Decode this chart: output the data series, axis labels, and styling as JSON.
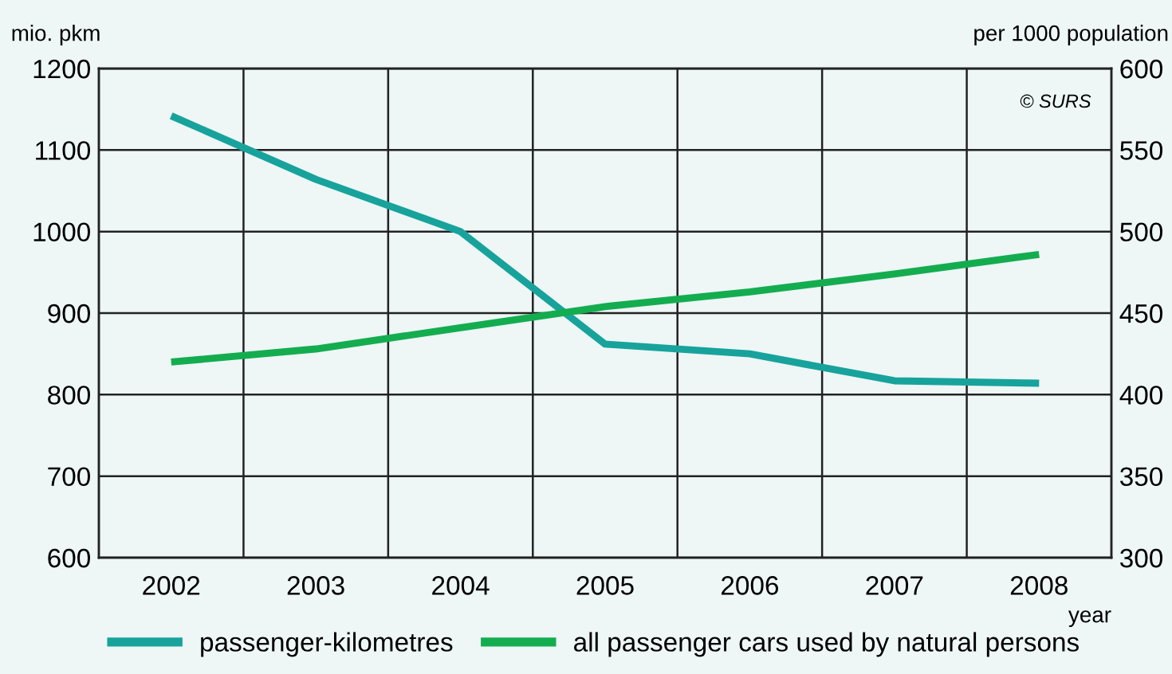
{
  "chart_data": {
    "type": "line",
    "categories": [
      "2002",
      "2003",
      "2004",
      "2005",
      "2006",
      "2007",
      "2008"
    ],
    "ylabel": "mio. pkm",
    "y2label": "per 1000 population",
    "xlabel": "year",
    "annotations": [
      "© SURS"
    ],
    "series": [
      {
        "name": "passenger-kilometres",
        "color": "#17a39c",
        "values": [
          1142,
          1064,
          1000,
          862,
          850,
          817,
          814
        ]
      },
      {
        "name": "all passenger cars used by natural persons",
        "color": "#13ad4f",
        "axis": "y2",
        "values": [
          420,
          428,
          441,
          454,
          463,
          474,
          486
        ]
      }
    ],
    "ylim": [
      600,
      1200
    ],
    "yticks": [
      600,
      700,
      800,
      900,
      1000,
      1100,
      1200
    ],
    "y2lim": [
      300,
      600
    ],
    "y2ticks": [
      300,
      350,
      400,
      450,
      500,
      550,
      600
    ],
    "grid": true,
    "legend": "bottom",
    "marker": "none",
    "line_style": "solid"
  }
}
